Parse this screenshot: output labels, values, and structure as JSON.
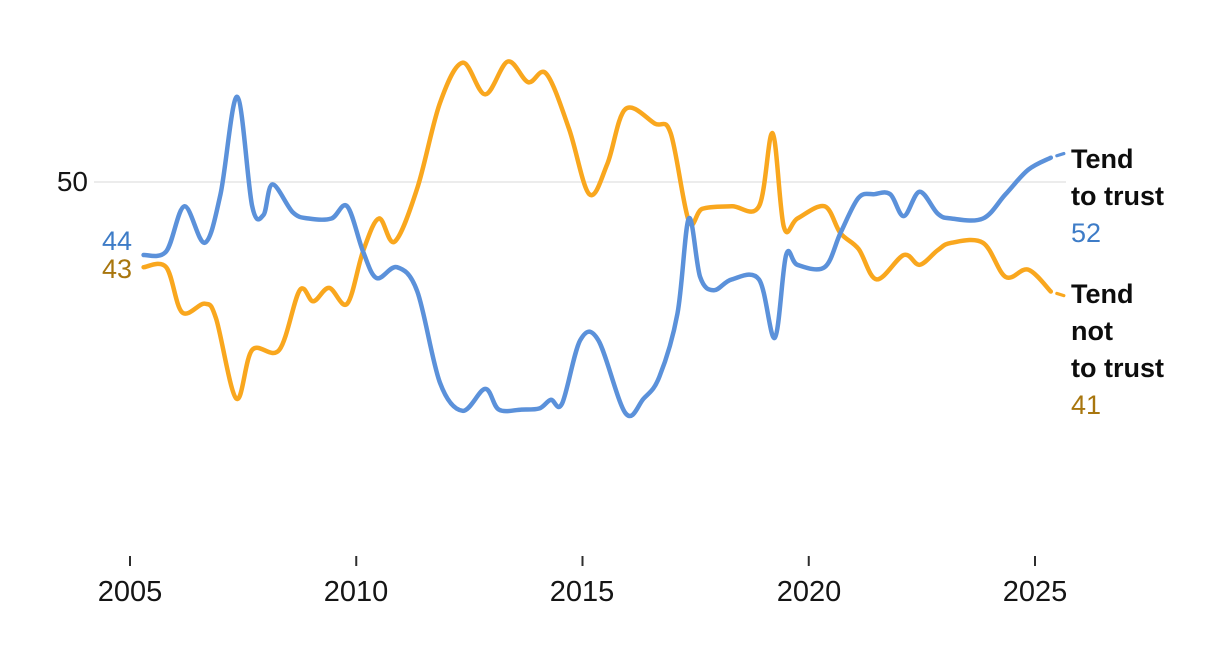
{
  "chart_data": {
    "type": "line",
    "title": "",
    "xlabel": "",
    "ylabel": "",
    "x_range_years": [
      2005.3,
      2025.35
    ],
    "ylim": [
      28,
      62
    ],
    "grid": "single horizontal gridline at y=50",
    "legend_position": "right",
    "y_gridline": {
      "value": 50,
      "label": "50"
    },
    "x_ticks": [
      2005,
      2010,
      2015,
      2020,
      2025
    ],
    "x_tick_labels": [
      "2005",
      "2010",
      "2015",
      "2020",
      "2025"
    ],
    "colors": {
      "trust_line": "#5b91da",
      "trust_label": "#3e7cc7",
      "distrust_line": "#f9a71e",
      "distrust_label": "#a8760e",
      "gridline": "#e6e6e6",
      "tick": "#2e2e2e",
      "axis_text": "#151515"
    },
    "series": [
      {
        "name": "Tend to trust",
        "color": "#5b91da",
        "label_color": "#3e7cc7",
        "start_label": "44",
        "end_label": "52",
        "points": [
          [
            2005.3,
            44
          ],
          [
            2005.8,
            44.3
          ],
          [
            2006.2,
            48
          ],
          [
            2006.65,
            45
          ],
          [
            2007.0,
            49
          ],
          [
            2007.37,
            57
          ],
          [
            2007.7,
            48
          ],
          [
            2007.95,
            47.3
          ],
          [
            2008.15,
            49.8
          ],
          [
            2008.6,
            47.5
          ],
          [
            2008.95,
            47
          ],
          [
            2009.45,
            47
          ],
          [
            2009.8,
            48
          ],
          [
            2010.15,
            44.3
          ],
          [
            2010.45,
            42.1
          ],
          [
            2010.9,
            43
          ],
          [
            2011.35,
            41
          ],
          [
            2011.85,
            33.5
          ],
          [
            2012.35,
            31.2
          ],
          [
            2012.85,
            33
          ],
          [
            2013.15,
            31.3
          ],
          [
            2013.65,
            31.3
          ],
          [
            2014.05,
            31.4
          ],
          [
            2014.3,
            32.1
          ],
          [
            2014.55,
            31.8
          ],
          [
            2014.95,
            37
          ],
          [
            2015.35,
            37
          ],
          [
            2015.95,
            31
          ],
          [
            2016.35,
            32.2
          ],
          [
            2016.7,
            34
          ],
          [
            2017.1,
            39.2
          ],
          [
            2017.35,
            47
          ],
          [
            2017.6,
            42.2
          ],
          [
            2017.9,
            41.1
          ],
          [
            2018.3,
            42
          ],
          [
            2018.9,
            42
          ],
          [
            2019.25,
            37.2
          ],
          [
            2019.5,
            44
          ],
          [
            2019.75,
            43.2
          ],
          [
            2020.35,
            43
          ],
          [
            2020.7,
            45.8
          ],
          [
            2021.1,
            48.7
          ],
          [
            2021.45,
            49
          ],
          [
            2021.8,
            49
          ],
          [
            2022.1,
            47.2
          ],
          [
            2022.45,
            49.2
          ],
          [
            2022.85,
            47.4
          ],
          [
            2023.15,
            47
          ],
          [
            2023.85,
            47
          ],
          [
            2024.35,
            49
          ],
          [
            2024.85,
            51
          ],
          [
            2025.35,
            52
          ]
        ]
      },
      {
        "name": "Tend not to trust",
        "color": "#f9a71e",
        "label_color": "#a8760e",
        "start_label": "43",
        "end_label": "41",
        "points": [
          [
            2005.3,
            43
          ],
          [
            2005.8,
            43
          ],
          [
            2006.15,
            39.3
          ],
          [
            2006.65,
            40
          ],
          [
            2006.9,
            38.8
          ],
          [
            2007.35,
            32.2
          ],
          [
            2007.7,
            36.2
          ],
          [
            2008.3,
            36.2
          ],
          [
            2008.75,
            41.1
          ],
          [
            2009.05,
            40.2
          ],
          [
            2009.4,
            41.3
          ],
          [
            2009.8,
            40
          ],
          [
            2010.15,
            44.3
          ],
          [
            2010.5,
            47
          ],
          [
            2010.85,
            45.1
          ],
          [
            2011.35,
            49.5
          ],
          [
            2011.85,
            56.5
          ],
          [
            2012.35,
            59.8
          ],
          [
            2012.85,
            57.2
          ],
          [
            2013.35,
            59.9
          ],
          [
            2013.8,
            58.2
          ],
          [
            2014.2,
            58.9
          ],
          [
            2014.7,
            54.4
          ],
          [
            2015.15,
            49
          ],
          [
            2015.55,
            51.5
          ],
          [
            2015.95,
            56
          ],
          [
            2016.6,
            54.8
          ],
          [
            2016.95,
            54
          ],
          [
            2017.35,
            46.8
          ],
          [
            2017.65,
            47.8
          ],
          [
            2018.3,
            48
          ],
          [
            2018.9,
            48
          ],
          [
            2019.2,
            54
          ],
          [
            2019.45,
            46.3
          ],
          [
            2019.75,
            47
          ],
          [
            2020.35,
            48
          ],
          [
            2020.7,
            45.8
          ],
          [
            2021.1,
            44.5
          ],
          [
            2021.5,
            42
          ],
          [
            2022.1,
            44
          ],
          [
            2022.45,
            43.2
          ],
          [
            2022.85,
            44.4
          ],
          [
            2023.15,
            45
          ],
          [
            2023.85,
            45
          ],
          [
            2024.35,
            42.2
          ],
          [
            2024.85,
            42.8
          ],
          [
            2025.35,
            41
          ]
        ]
      }
    ],
    "legend": {
      "trust": {
        "lines": [
          "Tend",
          "to trust"
        ],
        "value": "52"
      },
      "distrust": {
        "lines": [
          "Tend",
          "not",
          "to trust"
        ],
        "value": "41"
      }
    }
  }
}
